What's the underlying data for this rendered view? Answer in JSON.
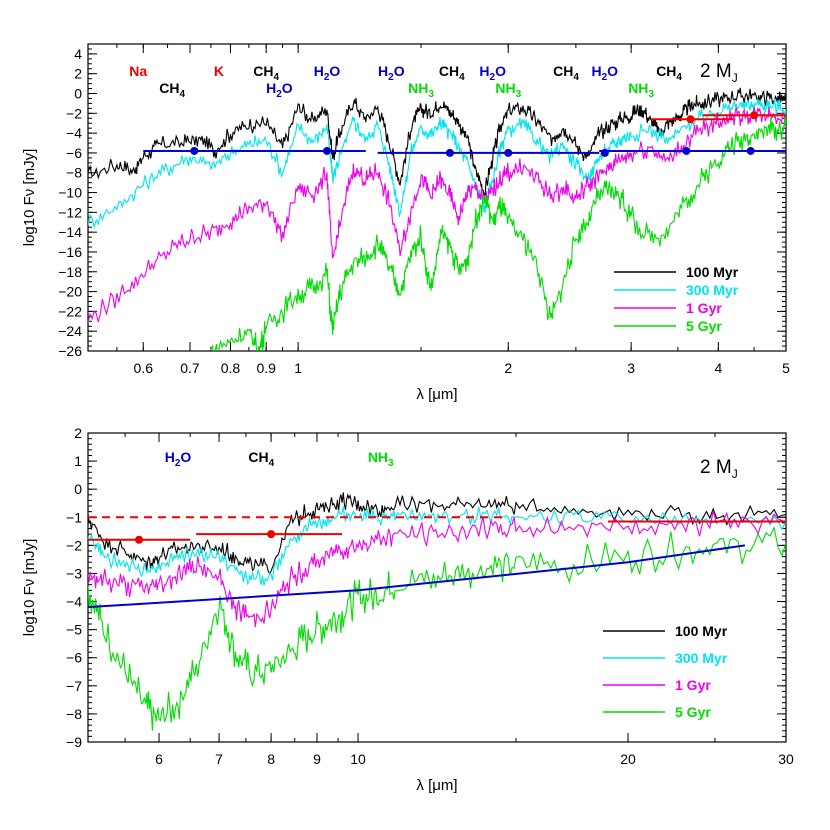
{
  "colors": {
    "age_100myr": "#000000",
    "age_300myr": "#00e5ee",
    "age_1gyr": "#ee00ee",
    "age_5gyr": "#00dd00",
    "sensitivity_blue": "#0000cc",
    "sensitivity_red": "#ee0000"
  },
  "chart_data": [
    {
      "type": "line",
      "panel": "top",
      "annotation": "2 M_J",
      "xlabel": "λ [μm]",
      "ylabel": "log10 Fν [mJy]",
      "xscale": "log",
      "xlim": [
        0.5,
        5.0
      ],
      "ylim": [
        -26,
        5
      ],
      "xticks": [
        0.6,
        0.7,
        0.8,
        0.9,
        1,
        2,
        3,
        4,
        5
      ],
      "xtick_labels": [
        "0.6",
        "0.7",
        "0.8",
        "0.9",
        "1",
        "2",
        "3",
        "4",
        "5"
      ],
      "yticks": [
        -26,
        -24,
        -22,
        -20,
        -18,
        -16,
        -14,
        -12,
        -10,
        -8,
        -6,
        -4,
        -2,
        0,
        2,
        4
      ],
      "ytick_labels": [
        "−26",
        "−24",
        "−22",
        "−20",
        "−18",
        "−16",
        "−14",
        "−12",
        "−10",
        "−8",
        "−6",
        "−4",
        "−2",
        "0",
        "2",
        "4"
      ],
      "species_labels": [
        {
          "text": "Na",
          "sub": "",
          "x": 0.59,
          "row": 1,
          "color_key": "sensitivity_red"
        },
        {
          "text": "K",
          "sub": "",
          "x": 0.77,
          "row": 1,
          "color_key": "sensitivity_red"
        },
        {
          "text": "CH",
          "sub": "4",
          "x": 0.9,
          "row": 1,
          "color_key": "age_100myr"
        },
        {
          "text": "CH",
          "sub": "4",
          "x": 0.66,
          "row": 2,
          "color_key": "age_100myr"
        },
        {
          "text": "H",
          "sub": "2",
          "tail": "O",
          "x": 1.1,
          "row": 1,
          "color_key": "sensitivity_blue"
        },
        {
          "text": "H",
          "sub": "2",
          "tail": "O",
          "x": 0.94,
          "row": 2,
          "color_key": "sensitivity_blue"
        },
        {
          "text": "H",
          "sub": "2",
          "tail": "O",
          "x": 1.36,
          "row": 1,
          "color_key": "sensitivity_blue"
        },
        {
          "text": "CH",
          "sub": "4",
          "x": 1.66,
          "row": 1,
          "color_key": "age_100myr"
        },
        {
          "text": "H",
          "sub": "2",
          "tail": "O",
          "x": 1.9,
          "row": 1,
          "color_key": "sensitivity_blue"
        },
        {
          "text": "NH",
          "sub": "3",
          "x": 1.5,
          "row": 2,
          "color_key": "age_5gyr"
        },
        {
          "text": "NH",
          "sub": "3",
          "x": 2.0,
          "row": 2,
          "color_key": "age_5gyr"
        },
        {
          "text": "CH",
          "sub": "4",
          "x": 2.42,
          "row": 1,
          "color_key": "age_100myr"
        },
        {
          "text": "H",
          "sub": "2",
          "tail": "O",
          "x": 2.75,
          "row": 1,
          "color_key": "sensitivity_blue"
        },
        {
          "text": "CH",
          "sub": "4",
          "x": 3.4,
          "row": 1,
          "color_key": "age_100myr"
        },
        {
          "text": "NH",
          "sub": "3",
          "x": 3.1,
          "row": 2,
          "color_key": "age_5gyr"
        }
      ],
      "series": [
        {
          "name": "100 Myr",
          "color_key": "age_100myr",
          "x": [
            0.5,
            0.55,
            0.58,
            0.6,
            0.63,
            0.68,
            0.72,
            0.76,
            0.8,
            0.85,
            0.9,
            0.95,
            1.0,
            1.05,
            1.1,
            1.12,
            1.15,
            1.2,
            1.25,
            1.3,
            1.35,
            1.4,
            1.45,
            1.5,
            1.55,
            1.6,
            1.65,
            1.7,
            1.75,
            1.8,
            1.85,
            1.9,
            1.95,
            2.0,
            2.1,
            2.2,
            2.3,
            2.4,
            2.5,
            2.6,
            2.7,
            2.8,
            2.9,
            3.0,
            3.1,
            3.2,
            3.3,
            3.4,
            3.5,
            3.6,
            3.7,
            3.8,
            4.0,
            4.2,
            4.4,
            4.6,
            4.8,
            5.0
          ],
          "y": [
            -8.2,
            -7.2,
            -7.8,
            -6.4,
            -5.2,
            -5.0,
            -4.6,
            -5.8,
            -4.0,
            -3.2,
            -2.9,
            -5.5,
            -1.3,
            -2.8,
            -1.5,
            -6.5,
            -3.8,
            -0.8,
            -2.6,
            -1.4,
            -4.8,
            -9.0,
            -3.5,
            -1.5,
            -2.0,
            -1.0,
            -1.8,
            -3.0,
            -4.6,
            -8.0,
            -10.0,
            -6.5,
            -3.2,
            -1.8,
            -1.4,
            -2.8,
            -4.6,
            -3.4,
            -5.2,
            -6.5,
            -4.0,
            -3.2,
            -2.6,
            -2.2,
            -1.4,
            -2.8,
            -4.0,
            -2.8,
            -2.4,
            -1.6,
            -1.1,
            -0.9,
            -0.6,
            -0.3,
            -0.2,
            -0.3,
            -0.5,
            -0.8
          ]
        },
        {
          "name": "300 Myr",
          "color_key": "age_300myr",
          "x": [
            0.5,
            0.55,
            0.6,
            0.65,
            0.7,
            0.75,
            0.8,
            0.85,
            0.9,
            0.95,
            1.0,
            1.05,
            1.1,
            1.12,
            1.15,
            1.2,
            1.25,
            1.3,
            1.35,
            1.4,
            1.45,
            1.5,
            1.55,
            1.6,
            1.65,
            1.7,
            1.75,
            1.8,
            1.85,
            1.9,
            1.95,
            2.0,
            2.1,
            2.2,
            2.3,
            2.4,
            2.5,
            2.6,
            2.7,
            2.8,
            2.9,
            3.0,
            3.2,
            3.4,
            3.6,
            3.8,
            4.0,
            4.2,
            4.4,
            4.6,
            4.8,
            5.0
          ],
          "y": [
            -13.0,
            -11.5,
            -9.2,
            -7.6,
            -6.4,
            -7.4,
            -6.0,
            -5.2,
            -4.7,
            -8.0,
            -3.4,
            -4.9,
            -3.2,
            -8.5,
            -6.2,
            -2.8,
            -4.6,
            -3.2,
            -7.0,
            -12.0,
            -6.0,
            -3.5,
            -4.2,
            -3.0,
            -4.0,
            -5.5,
            -7.0,
            -9.5,
            -11.5,
            -8.8,
            -5.4,
            -3.6,
            -3.2,
            -4.8,
            -6.4,
            -5.2,
            -7.2,
            -8.5,
            -6.5,
            -5.4,
            -4.6,
            -4.2,
            -3.6,
            -4.8,
            -3.2,
            -2.4,
            -1.8,
            -1.3,
            -1.1,
            -1.1,
            -1.3,
            -1.6
          ]
        },
        {
          "name": "1 Gyr",
          "color_key": "age_1gyr",
          "x": [
            0.5,
            0.55,
            0.6,
            0.65,
            0.7,
            0.75,
            0.8,
            0.85,
            0.9,
            0.95,
            1.0,
            1.05,
            1.1,
            1.12,
            1.15,
            1.2,
            1.25,
            1.3,
            1.35,
            1.4,
            1.45,
            1.5,
            1.55,
            1.6,
            1.65,
            1.7,
            1.75,
            1.8,
            1.85,
            1.9,
            1.95,
            2.0,
            2.1,
            2.2,
            2.3,
            2.4,
            2.5,
            2.6,
            2.7,
            2.8,
            2.9,
            3.0,
            3.2,
            3.4,
            3.6,
            3.8,
            4.0,
            4.2,
            4.4,
            4.6,
            4.8,
            5.0
          ],
          "y": [
            -23.0,
            -20.5,
            -18.2,
            -16.0,
            -14.6,
            -14.0,
            -12.8,
            -11.6,
            -10.9,
            -14.2,
            -9.3,
            -10.2,
            -8.0,
            -17.0,
            -13.0,
            -7.4,
            -8.8,
            -7.8,
            -11.0,
            -16.0,
            -12.0,
            -8.4,
            -10.5,
            -8.6,
            -10.4,
            -12.6,
            -10.0,
            -9.6,
            -11.0,
            -9.8,
            -8.8,
            -8.0,
            -7.4,
            -8.6,
            -10.4,
            -9.6,
            -10.6,
            -9.2,
            -8.2,
            -7.4,
            -6.6,
            -6.0,
            -5.4,
            -6.8,
            -4.8,
            -3.6,
            -2.8,
            -2.3,
            -2.1,
            -2.0,
            -2.2,
            -2.5
          ]
        },
        {
          "name": "5 Gyr",
          "color_key": "age_5gyr",
          "x": [
            0.75,
            0.8,
            0.85,
            0.88,
            0.9,
            0.95,
            1.0,
            1.05,
            1.1,
            1.12,
            1.15,
            1.2,
            1.25,
            1.3,
            1.35,
            1.4,
            1.45,
            1.5,
            1.55,
            1.6,
            1.65,
            1.7,
            1.75,
            1.8,
            1.85,
            1.9,
            1.95,
            2.0,
            2.1,
            2.2,
            2.3,
            2.4,
            2.5,
            2.6,
            2.7,
            2.8,
            2.9,
            3.0,
            3.2,
            3.4,
            3.6,
            3.8,
            4.0,
            4.2,
            4.4,
            4.6,
            4.8,
            5.0
          ],
          "y": [
            -26.0,
            -25.0,
            -24.2,
            -26.0,
            -23.4,
            -22.0,
            -20.2,
            -19.6,
            -18.2,
            -24.0,
            -20.0,
            -17.0,
            -16.6,
            -15.2,
            -17.6,
            -20.0,
            -16.2,
            -14.4,
            -20.0,
            -14.0,
            -15.2,
            -18.0,
            -16.5,
            -12.5,
            -10.5,
            -12.8,
            -11.4,
            -13.0,
            -14.6,
            -17.2,
            -23.0,
            -19.0,
            -14.6,
            -12.8,
            -10.2,
            -9.6,
            -10.5,
            -12.5,
            -14.8,
            -13.6,
            -10.8,
            -8.6,
            -6.6,
            -5.2,
            -4.3,
            -3.8,
            -3.6,
            -3.4
          ]
        }
      ],
      "sensitivity_lines": [
        {
          "color_key": "sensitivity_blue",
          "x": [
            0.6,
            1.25
          ],
          "y": -5.8,
          "points_x": [
            0.71,
            1.1
          ]
        },
        {
          "color_key": "sensitivity_blue",
          "x": [
            1.3,
            2.7
          ],
          "y": -6.0,
          "points_x": [
            1.65,
            2.0,
            2.75
          ]
        },
        {
          "color_key": "sensitivity_blue",
          "x": [
            2.7,
            5.0
          ],
          "y": -5.8,
          "points_x": [
            3.6,
            4.45
          ]
        },
        {
          "color_key": "sensitivity_red",
          "x": [
            3.2,
            4.2
          ],
          "y": -2.6,
          "points_x": [
            3.65
          ]
        },
        {
          "color_key": "sensitivity_red",
          "x": [
            3.8,
            5.0
          ],
          "y": -2.2,
          "points_x": [
            4.5
          ]
        }
      ],
      "legend_placement": "bottom-right"
    },
    {
      "type": "line",
      "panel": "bottom",
      "annotation": "2 M_J",
      "xlabel": "λ [μm]",
      "ylabel": "log10 Fν [mJy]",
      "xscale": "log",
      "xlim": [
        5.0,
        30.0
      ],
      "ylim": [
        -9,
        2
      ],
      "xticks": [
        6,
        7,
        8,
        9,
        10,
        20,
        30
      ],
      "xtick_labels": [
        "6",
        "7",
        "8",
        "9",
        "10",
        "20",
        "30"
      ],
      "yticks": [
        -9,
        -8,
        -7,
        -6,
        -5,
        -4,
        -3,
        -2,
        -1,
        0,
        1,
        2
      ],
      "ytick_labels": [
        "−9",
        "−8",
        "−7",
        "−6",
        "−5",
        "−4",
        "−3",
        "−2",
        "−1",
        "0",
        "1",
        "2"
      ],
      "species_labels": [
        {
          "text": "H",
          "sub": "2",
          "tail": "O",
          "x": 6.3,
          "row": 1,
          "color_key": "sensitivity_blue"
        },
        {
          "text": "CH",
          "sub": "4",
          "x": 7.8,
          "row": 1,
          "color_key": "age_100myr"
        },
        {
          "text": "NH",
          "sub": "3",
          "x": 10.6,
          "row": 1,
          "color_key": "age_5gyr"
        }
      ],
      "series": [
        {
          "name": "100 Myr",
          "color_key": "age_100myr",
          "x": [
            5.0,
            5.2,
            5.5,
            5.8,
            6.0,
            6.3,
            6.6,
            7.0,
            7.3,
            7.6,
            8.0,
            8.4,
            8.8,
            9.2,
            9.6,
            10.0,
            10.5,
            11.0,
            12.0,
            13.0,
            14.0,
            15.0,
            17.0,
            20.0,
            23.0,
            26.0,
            30.0
          ],
          "y": [
            -1.0,
            -1.8,
            -2.2,
            -2.6,
            -2.4,
            -2.1,
            -2.0,
            -2.1,
            -2.4,
            -2.7,
            -2.8,
            -1.2,
            -0.8,
            -0.6,
            -0.4,
            -0.5,
            -0.7,
            -0.6,
            -0.5,
            -0.6,
            -0.5,
            -0.6,
            -0.7,
            -0.8,
            -0.9,
            -0.95,
            -0.9
          ]
        },
        {
          "name": "300 Myr",
          "color_key": "age_300myr",
          "x": [
            5.0,
            5.2,
            5.5,
            5.8,
            6.0,
            6.3,
            6.6,
            7.0,
            7.3,
            7.6,
            8.0,
            8.4,
            8.8,
            9.2,
            9.6,
            10.0,
            10.5,
            11.0,
            12.0,
            13.0,
            14.0,
            15.0,
            17.0,
            20.0,
            23.0,
            26.0,
            30.0
          ],
          "y": [
            -1.6,
            -2.4,
            -2.7,
            -2.9,
            -2.7,
            -2.4,
            -2.3,
            -2.4,
            -2.9,
            -3.2,
            -3.1,
            -1.8,
            -1.3,
            -1.1,
            -0.9,
            -0.9,
            -1.1,
            -1.0,
            -0.9,
            -1.0,
            -0.9,
            -1.0,
            -1.0,
            -1.05,
            -1.1,
            -1.15,
            -1.15
          ]
        },
        {
          "name": "1 Gyr",
          "color_key": "age_1gyr",
          "x": [
            5.0,
            5.2,
            5.5,
            5.8,
            6.0,
            6.3,
            6.6,
            7.0,
            7.3,
            7.6,
            8.0,
            8.4,
            8.8,
            9.2,
            9.6,
            10.0,
            10.5,
            11.0,
            12.0,
            13.0,
            14.0,
            15.0,
            17.0,
            20.0,
            23.0,
            26.0,
            30.0
          ],
          "y": [
            -3.0,
            -3.2,
            -3.4,
            -3.5,
            -3.4,
            -3.0,
            -2.8,
            -3.2,
            -4.2,
            -4.6,
            -4.3,
            -3.2,
            -2.8,
            -2.4,
            -2.1,
            -2.0,
            -1.8,
            -1.6,
            -1.6,
            -1.5,
            -1.4,
            -1.4,
            -1.35,
            -1.3,
            -1.25,
            -1.2,
            -1.2
          ]
        },
        {
          "name": "5 Gyr",
          "color_key": "age_5gyr",
          "x": [
            5.0,
            5.2,
            5.5,
            5.8,
            6.0,
            6.3,
            6.6,
            7.0,
            7.3,
            7.6,
            8.0,
            8.4,
            8.8,
            9.2,
            9.6,
            10.0,
            10.5,
            11.0,
            12.0,
            13.0,
            14.0,
            15.0,
            17.0,
            20.0,
            23.0,
            26.0,
            30.0
          ],
          "y": [
            -3.5,
            -5.0,
            -6.5,
            -7.8,
            -8.2,
            -7.6,
            -6.4,
            -4.0,
            -5.8,
            -6.6,
            -6.4,
            -5.8,
            -5.2,
            -4.8,
            -4.4,
            -3.8,
            -3.8,
            -3.4,
            -3.2,
            -3.0,
            -2.8,
            -2.65,
            -2.75,
            -2.4,
            -2.15,
            -2.0,
            -1.9
          ]
        }
      ],
      "sensitivity_lines": [
        {
          "color_key": "sensitivity_blue",
          "x": [
            5.0,
            10.0,
            20.0,
            27.0
          ],
          "y_curve": [
            -4.2,
            -3.6,
            -2.6,
            -2.0
          ],
          "points_x": []
        },
        {
          "color_key": "sensitivity_red",
          "x": [
            5.0,
            6.5
          ],
          "y": -1.8,
          "points_x": [
            5.7
          ]
        },
        {
          "color_key": "sensitivity_red",
          "x": [
            6.6,
            9.6
          ],
          "y": -1.6,
          "points_x": [
            8.0
          ]
        },
        {
          "color_key": "sensitivity_red",
          "x": [
            19.0,
            30.0
          ],
          "y": -1.15,
          "points_x": []
        },
        {
          "color_key": "sensitivity_red",
          "x": [
            5.0,
            14.5
          ],
          "y": -1.0,
          "dashed": true,
          "points_x": []
        }
      ],
      "legend_placement": "bottom-right"
    }
  ]
}
